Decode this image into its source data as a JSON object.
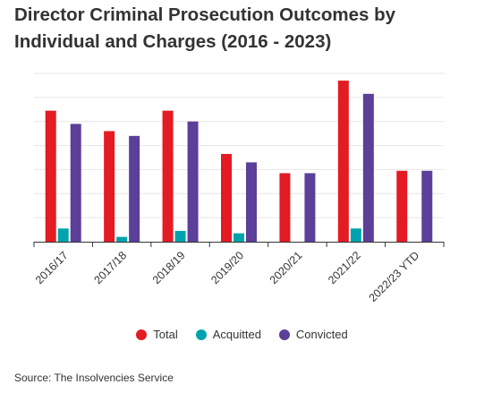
{
  "chart_data": {
    "type": "bar",
    "title_lines": [
      "Director Criminal Prosecution Outcomes by",
      "Individual and Charges (2016 - 2023)"
    ],
    "categories": [
      "2016/17",
      "2017/18",
      "2018/19",
      "2019/20",
      "2020/21",
      "2021/22",
      "2022/23 YTD"
    ],
    "series": [
      {
        "name": "Total",
        "color": "#E31B23",
        "values": [
          109,
          92,
          109,
          73,
          57,
          134,
          59
        ]
      },
      {
        "name": "Acquitted",
        "color": "#00A3AD",
        "values": [
          11,
          4,
          9,
          7,
          0,
          11,
          0
        ]
      },
      {
        "name": "Convicted",
        "color": "#5B3F99",
        "values": [
          98,
          88,
          100,
          66,
          57,
          123,
          59
        ]
      }
    ],
    "ylim": [
      0,
      140
    ],
    "ytick_step": 20,
    "ytick_labels_shown": false,
    "grid": true,
    "legend_position": "bottom",
    "source": "Source: The Insolvencies Service"
  }
}
